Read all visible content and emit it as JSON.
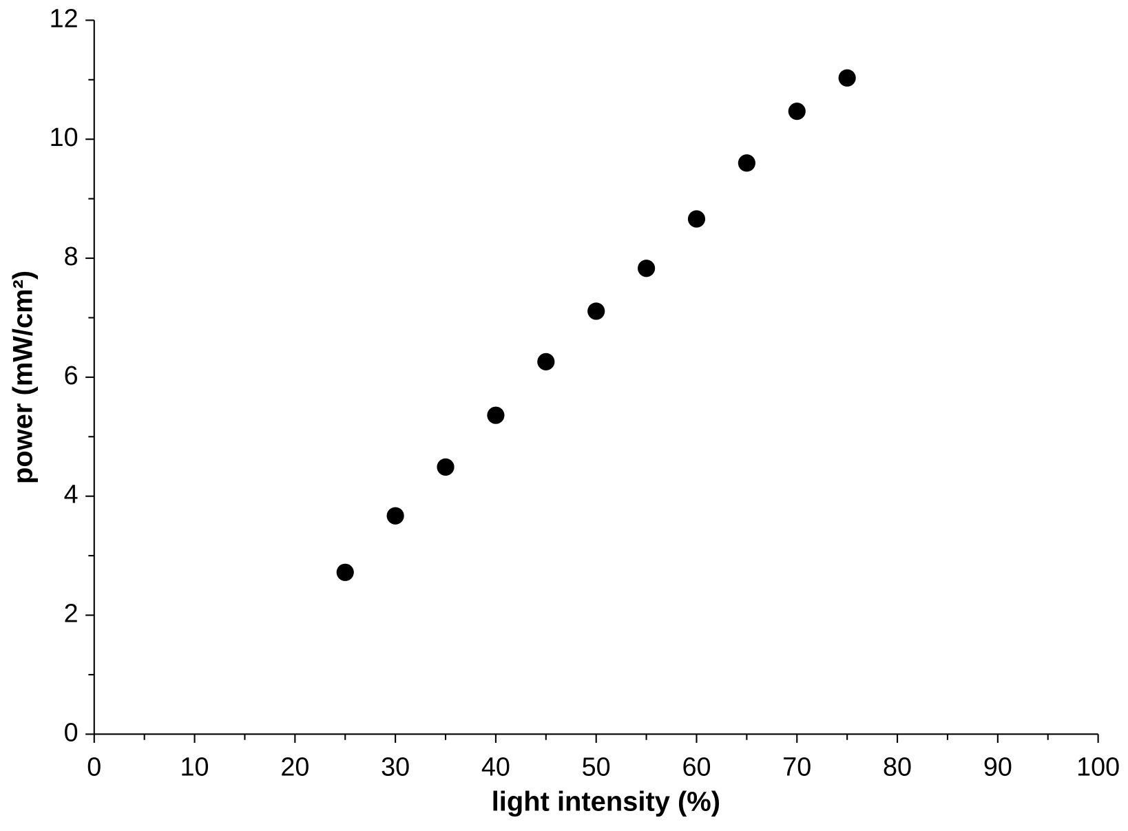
{
  "chart_data": {
    "type": "scatter",
    "x_label": "light intensity (%)",
    "y_label": "power (mW/cm²)",
    "x": [
      25,
      30,
      35,
      40,
      45,
      50,
      55,
      60,
      65,
      70,
      75
    ],
    "values": [
      2.72,
      3.67,
      4.49,
      5.36,
      6.26,
      7.11,
      7.83,
      8.66,
      9.6,
      10.47,
      11.03
    ],
    "color": "#000000",
    "xlim": [
      0,
      100
    ],
    "xticks": [
      0,
      10,
      20,
      30,
      40,
      50,
      60,
      70,
      80,
      90,
      100
    ],
    "xminorticks": [
      5,
      15,
      25,
      35,
      45,
      55,
      65,
      75,
      85,
      95
    ],
    "ylim": [
      0,
      12
    ],
    "yticks": [
      0,
      2,
      4,
      6,
      8,
      10,
      12
    ],
    "yminorticks": [
      1,
      3,
      5,
      7,
      9,
      11
    ],
    "grid": false
  }
}
